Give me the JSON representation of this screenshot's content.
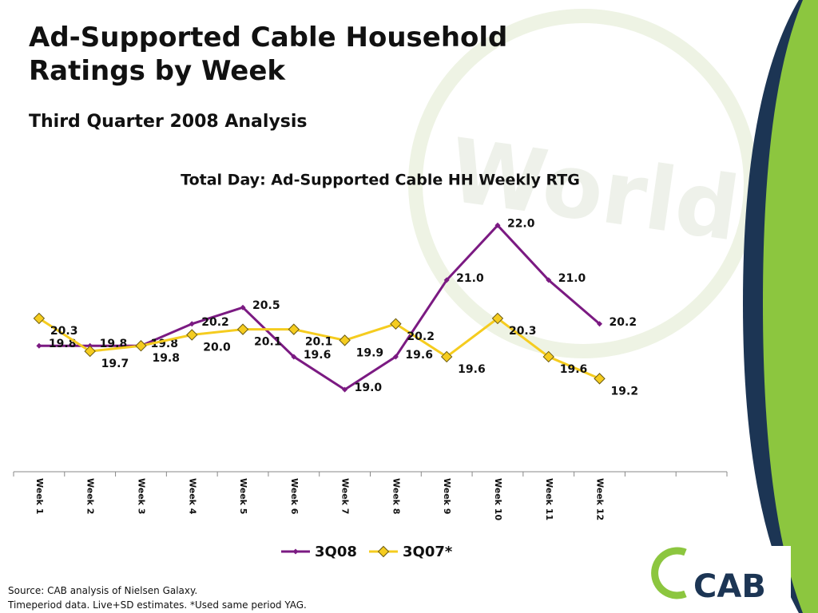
{
  "title": "Ad-Supported Cable Household Ratings by Week",
  "subtitle": "Third Quarter 2008 Analysis",
  "chart_data": {
    "type": "line",
    "title": "Total Day: Ad-Supported Cable HH Weekly RTG",
    "categories": [
      "Week 1",
      "Week 2",
      "Week 3",
      "Week 4",
      "Week 5",
      "Week 6",
      "Week 7",
      "Week 8",
      "Week 9",
      "Week 10",
      "Week 11",
      "Week 12",
      null,
      null
    ],
    "series": [
      {
        "name": "3Q08",
        "color": "#7b1a82",
        "marker": "#7b1a82",
        "values": [
          19.8,
          19.8,
          19.8,
          20.2,
          20.5,
          19.6,
          19.0,
          19.6,
          21.0,
          22.0,
          21.0,
          20.2,
          null,
          null
        ],
        "value_labels": [
          "19.8",
          "19.8",
          "19.8",
          "20.2",
          "20.5",
          "19.6",
          "19.0",
          "19.6",
          "21.0",
          "22.0",
          "21.0",
          "20.2",
          null,
          null
        ]
      },
      {
        "name": "3Q07*",
        "color": "#f5cc1f",
        "marker": "#f5cc1f",
        "values": [
          20.3,
          19.7,
          19.8,
          20.0,
          20.1,
          20.1,
          19.9,
          20.2,
          19.6,
          20.3,
          19.6,
          19.2,
          null,
          null
        ],
        "value_labels": [
          "20.3",
          "19.7",
          "19.8",
          "20.0",
          "20.1",
          "20.1",
          "19.9",
          "20.2",
          "19.6",
          "20.3",
          "19.6",
          "19.2",
          null,
          null
        ]
      }
    ],
    "ylim": [
      17.5,
      22.5
    ],
    "legend": "bottom"
  },
  "footer": [
    "Source: CAB analysis of Nielsen Galaxy.",
    "Timeperiod data.  Live+SD estimates. *Used same period YAG."
  ],
  "logo": "CAB"
}
